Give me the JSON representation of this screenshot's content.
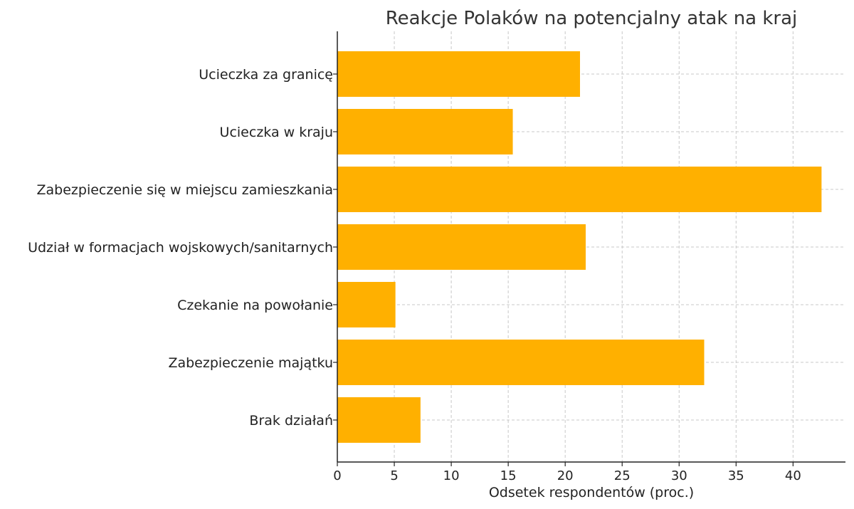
{
  "chart_data": {
    "type": "bar",
    "orientation": "horizontal",
    "title": "Reakcje Polaków na potencjalny atak na kraj",
    "xlabel": "Odsetek respondentów (proc.)",
    "ylabel": "",
    "categories": [
      "Ucieczka za granicę",
      "Ucieczka w kraju",
      "Zabezpieczenie się w miejscu zamieszkania",
      "Udział w formacjach wojskowych/sanitarnych",
      "Czekanie na powołanie",
      "Zabezpieczenie majątku",
      "Brak działań"
    ],
    "values": [
      21.3,
      15.4,
      42.5,
      21.8,
      5.1,
      32.2,
      7.3
    ],
    "xlim": [
      0,
      44.6
    ],
    "xticks": [
      0,
      5,
      10,
      15,
      20,
      25,
      30,
      35,
      40
    ],
    "grid": true,
    "bar_color": "#FFB000"
  }
}
